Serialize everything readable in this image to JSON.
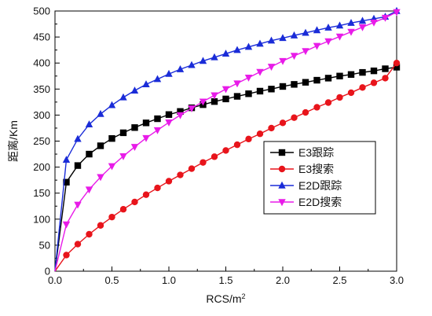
{
  "chart_data": {
    "type": "line",
    "title": "",
    "xlabel": "RCS/m",
    "xlabel_sup": "2",
    "ylabel": "距离/Km",
    "xlim": [
      0,
      3.0
    ],
    "ylim": [
      0,
      500
    ],
    "grid": false,
    "legend_position": "right-middle",
    "x_ticks": [
      "0.0",
      "0.5",
      "1.0",
      "1.5",
      "2.0",
      "2.5",
      "3.0"
    ],
    "y_ticks": [
      "0",
      "50",
      "100",
      "150",
      "200",
      "250",
      "300",
      "350",
      "400",
      "450",
      "500"
    ],
    "x": [
      0,
      0.1,
      0.2,
      0.3,
      0.4,
      0.5,
      0.6,
      0.7,
      0.8,
      0.9,
      1.0,
      1.1,
      1.2,
      1.3,
      1.4,
      1.5,
      1.6,
      1.7,
      1.8,
      1.9,
      2.0,
      2.1,
      2.2,
      2.3,
      2.4,
      2.5,
      2.6,
      2.7,
      2.8,
      2.9,
      3.0
    ],
    "series": [
      {
        "name": "E3跟踪",
        "color": "#000000",
        "marker": "square",
        "values": [
          0,
          171,
          203,
          225,
          241,
          255,
          266,
          276,
          285,
          293,
          301,
          307,
          314,
          320,
          326,
          331,
          336,
          341,
          346,
          350,
          355,
          359,
          363,
          367,
          371,
          375,
          378,
          382,
          385,
          389,
          392
        ]
      },
      {
        "name": "E3搜索",
        "color": "#e8141b",
        "marker": "circle",
        "values": [
          0,
          31,
          52,
          71,
          88,
          104,
          119,
          133,
          147,
          160,
          173,
          185,
          197,
          209,
          220,
          232,
          243,
          254,
          264,
          275,
          285,
          295,
          305,
          315,
          324,
          334,
          343,
          353,
          362,
          371,
          400
        ]
      },
      {
        "name": "E2D跟踪",
        "color": "#1a2cd8",
        "marker": "triangle-up",
        "values": [
          0,
          214,
          254,
          282,
          302,
          319,
          334,
          347,
          359,
          369,
          379,
          388,
          396,
          404,
          411,
          418,
          425,
          431,
          437,
          443,
          448,
          453,
          458,
          463,
          468,
          472,
          477,
          481,
          485,
          489,
          500
        ]
      },
      {
        "name": "E2D搜索",
        "color": "#e81be8",
        "marker": "triangle-down",
        "values": [
          0,
          90,
          128,
          157,
          181,
          202,
          221,
          239,
          256,
          271,
          286,
          300,
          313,
          326,
          338,
          350,
          361,
          372,
          383,
          393,
          404,
          414,
          423,
          433,
          442,
          451,
          460,
          469,
          478,
          487,
          498
        ]
      }
    ]
  }
}
